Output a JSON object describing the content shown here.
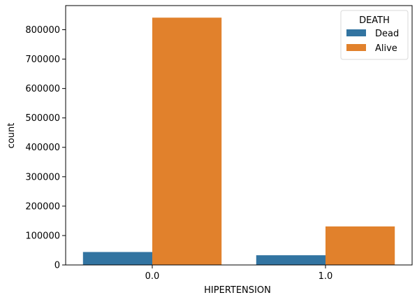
{
  "chart_data": {
    "type": "bar",
    "xlabel": "HIPERTENSION",
    "ylabel": "count",
    "categories": [
      "0.0",
      "1.0"
    ],
    "series": [
      {
        "name": "Dead",
        "color": "#3274a1",
        "values": [
          44000,
          33000
        ]
      },
      {
        "name": "Alive",
        "color": "#e1812c",
        "values": [
          841000,
          131000
        ]
      }
    ],
    "ylim": [
      0,
      882000
    ],
    "yticks": [
      0,
      100000,
      200000,
      300000,
      400000,
      500000,
      600000,
      700000,
      800000
    ],
    "legend": {
      "title": "DEATH",
      "placement": "top-right"
    },
    "grid": false
  }
}
